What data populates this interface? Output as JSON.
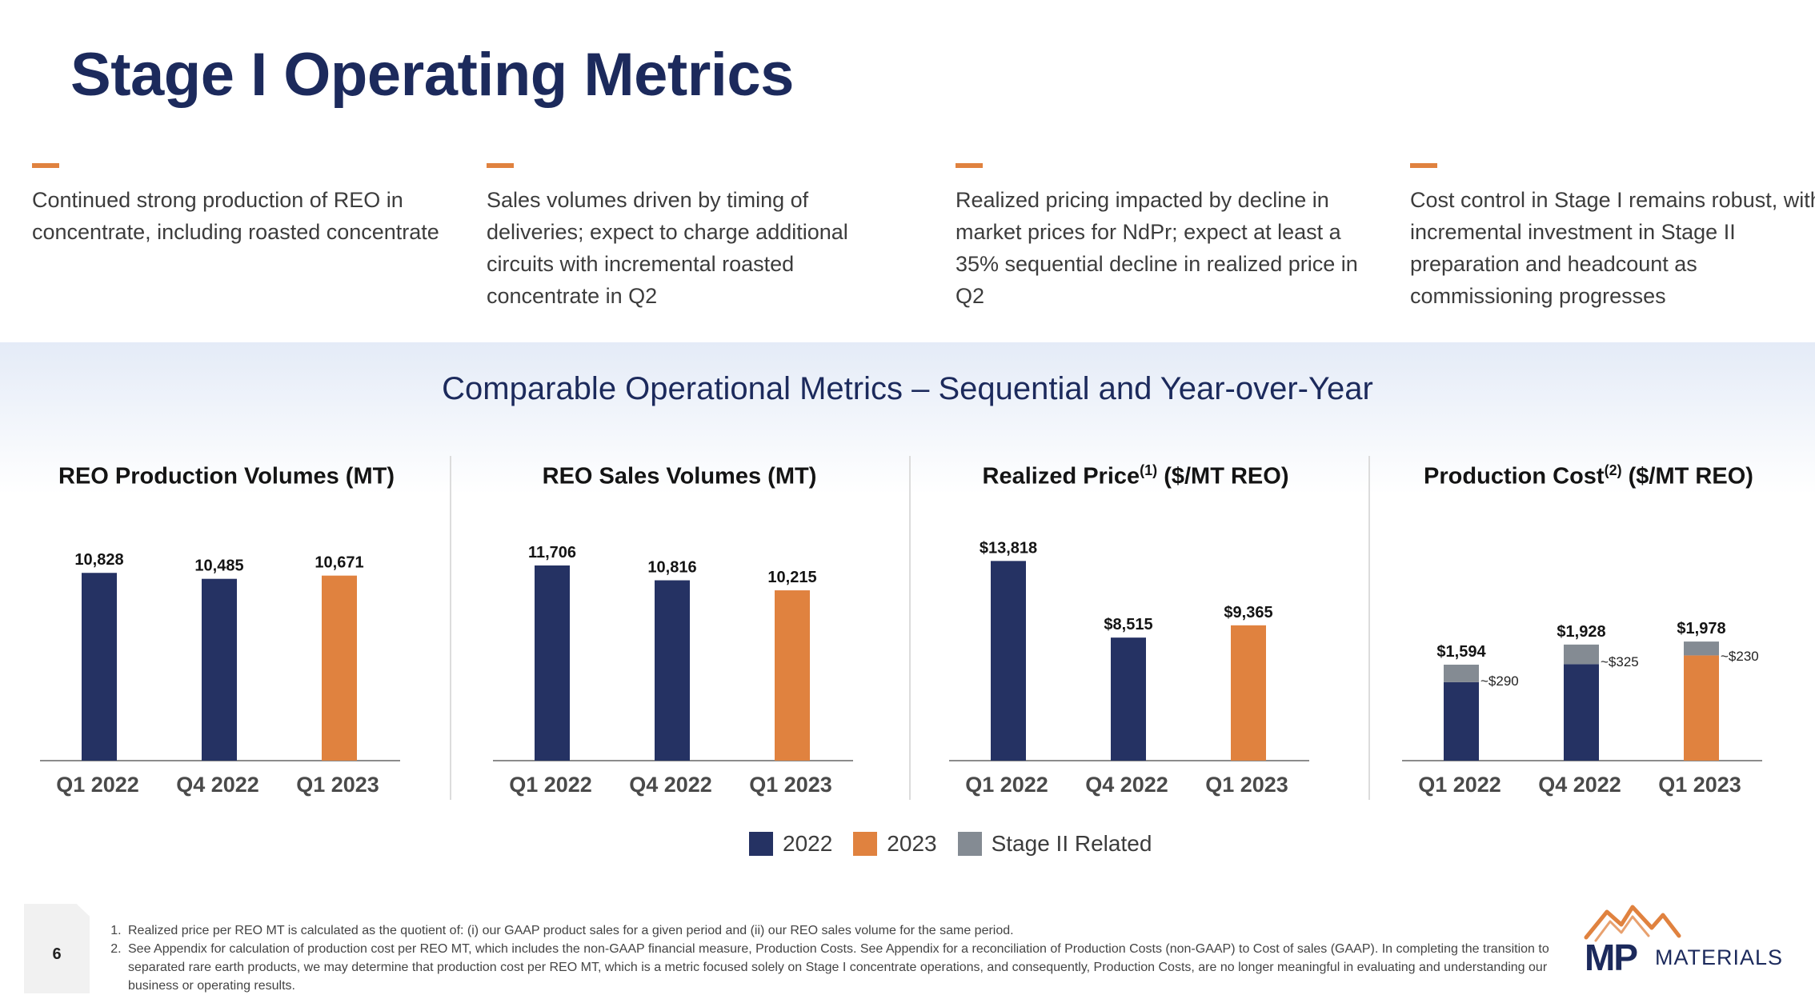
{
  "title": "Stage I Operating Metrics",
  "bullets": [
    "Continued strong production of REO in concentrate, including roasted concentrate",
    "Sales volumes driven by timing of deliveries; expect to charge additional circuits with incremental roasted concentrate in Q2",
    "Realized pricing impacted by decline in market prices for NdPr; expect at least a 35% sequential decline in realized price in Q2",
    "Cost control in Stage I remains robust, with incremental investment in Stage II preparation and headcount as commissioning progresses"
  ],
  "section_title": "Comparable Operational Metrics – Sequential and Year-over-Year",
  "colors": {
    "y2022": "#253263",
    "y2023": "#e0823f",
    "stage2": "#848b93",
    "accent": "#e0823f",
    "title": "#1c2a5c"
  },
  "chart_titles": [
    {
      "main": "REO Production Volumes (MT)",
      "sup": "",
      "suffix": ""
    },
    {
      "main": "REO Sales Volumes (MT)",
      "sup": "",
      "suffix": ""
    },
    {
      "main": "Realized Price",
      "sup": "(1)",
      "suffix": " ($/MT REO)"
    },
    {
      "main": "Production Cost",
      "sup": "(2)",
      "suffix": " ($/MT REO)"
    }
  ],
  "chart_data": [
    {
      "type": "bar",
      "categories": [
        "Q1 2022",
        "Q4 2022",
        "Q1 2023"
      ],
      "values": [
        10828,
        10485,
        10671
      ],
      "data_labels": [
        "10,828",
        "10,485",
        "10,671"
      ],
      "bar_colors": [
        "2022",
        "2022",
        "2023"
      ],
      "ylim": [
        0,
        12500
      ]
    },
    {
      "type": "bar",
      "categories": [
        "Q1 2022",
        "Q4 2022",
        "Q1 2023"
      ],
      "values": [
        11706,
        10816,
        10215
      ],
      "data_labels": [
        "11,706",
        "10,816",
        "10,215"
      ],
      "bar_colors": [
        "2022",
        "2022",
        "2023"
      ],
      "ylim": [
        0,
        13000
      ]
    },
    {
      "type": "bar",
      "categories": [
        "Q1 2022",
        "Q4 2022",
        "Q1 2023"
      ],
      "values": [
        13818,
        8515,
        9365
      ],
      "data_labels": [
        "$13,818",
        "$8,515",
        "$9,365"
      ],
      "bar_colors": [
        "2022",
        "2022",
        "2023"
      ],
      "ylim": [
        0,
        15000
      ]
    },
    {
      "type": "bar",
      "stacked": true,
      "categories": [
        "Q1 2022",
        "Q4 2022",
        "Q1 2023"
      ],
      "series": [
        {
          "name": "Base",
          "values": [
            1304,
            1603,
            1748
          ]
        },
        {
          "name": "Stage II Related",
          "values": [
            290,
            325,
            230
          ]
        }
      ],
      "totals": [
        1594,
        1928,
        1978
      ],
      "data_labels": [
        "$1,594",
        "$1,928",
        "$1,978"
      ],
      "stage2_labels": [
        "~$290",
        "~$325",
        "~$230"
      ],
      "bar_colors": [
        "2022",
        "2022",
        "2023"
      ],
      "ylim": [
        0,
        3600
      ]
    }
  ],
  "legend": [
    {
      "label": "2022",
      "color": "#253263"
    },
    {
      "label": "2023",
      "color": "#e0823f"
    },
    {
      "label": "Stage II Related",
      "color": "#848b93"
    }
  ],
  "page_number": "6",
  "footnotes": [
    "Realized price per REO MT is calculated as the quotient of: (i) our GAAP product sales for a given period and (ii) our REO sales volume for the same period.",
    "See Appendix for calculation of production cost per REO MT, which includes the non-GAAP financial measure, Production Costs. See Appendix for a reconciliation of Production Costs (non-GAAP) to Cost of sales (GAAP). In completing the transition to separated rare earth products, we may determine that production cost per REO MT, which is a metric focused solely on Stage I concentrate operations, and consequently, Production Costs, are no longer meaningful in evaluating and understanding our business or operating results."
  ],
  "logo": {
    "mark": "MP",
    "word": "MATERIALS"
  }
}
